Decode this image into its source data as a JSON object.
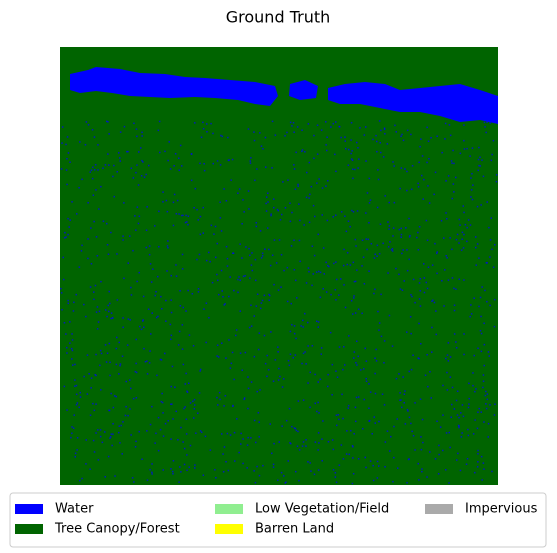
{
  "chart_data": {
    "type": "segmentation",
    "title": "Ground Truth",
    "series": [
      {
        "name": "Water",
        "color": "#0000ff"
      },
      {
        "name": "Tree Canopy/Forest",
        "color": "#006400"
      },
      {
        "name": "Low Vegetation/Field",
        "color": "#90ee90"
      },
      {
        "name": "Barren Land",
        "color": "#ffff00"
      },
      {
        "name": "Impervious",
        "color": "#aaaaaa"
      }
    ]
  }
}
